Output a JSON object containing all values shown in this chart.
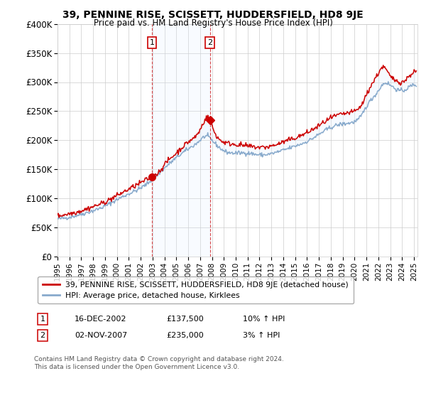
{
  "title": "39, PENNINE RISE, SCISSETT, HUDDERSFIELD, HD8 9JE",
  "subtitle": "Price paid vs. HM Land Registry's House Price Index (HPI)",
  "x_start": 1995,
  "x_end": 2025,
  "y_min": 0,
  "y_max": 400000,
  "y_ticks": [
    0,
    50000,
    100000,
    150000,
    200000,
    250000,
    300000,
    350000,
    400000
  ],
  "y_tick_labels": [
    "£0",
    "£50K",
    "£100K",
    "£150K",
    "£200K",
    "£250K",
    "£300K",
    "£350K",
    "£400K"
  ],
  "x_ticks": [
    1995,
    1996,
    1997,
    1998,
    1999,
    2000,
    2001,
    2002,
    2003,
    2004,
    2005,
    2006,
    2007,
    2008,
    2009,
    2010,
    2011,
    2012,
    2013,
    2014,
    2015,
    2016,
    2017,
    2018,
    2019,
    2020,
    2021,
    2022,
    2023,
    2024,
    2025
  ],
  "sale1_x": 2002.96,
  "sale1_y": 137500,
  "sale1_label": "1",
  "sale1_date": "16-DEC-2002",
  "sale1_price": "£137,500",
  "sale1_hpi": "10% ↑ HPI",
  "sale2_x": 2007.83,
  "sale2_y": 235000,
  "sale2_label": "2",
  "sale2_date": "02-NOV-2007",
  "sale2_price": "£235,000",
  "sale2_hpi": "3% ↑ HPI",
  "line_color_red": "#cc0000",
  "line_color_blue": "#88aacc",
  "fill_color": "#ddeeff",
  "grid_color": "#cccccc",
  "bg_color": "#ffffff",
  "legend_label_red": "39, PENNINE RISE, SCISSETT, HUDDERSFIELD, HD8 9JE (detached house)",
  "legend_label_blue": "HPI: Average price, detached house, Kirklees",
  "footer": "Contains HM Land Registry data © Crown copyright and database right 2024.\nThis data is licensed under the Open Government Licence v3.0."
}
